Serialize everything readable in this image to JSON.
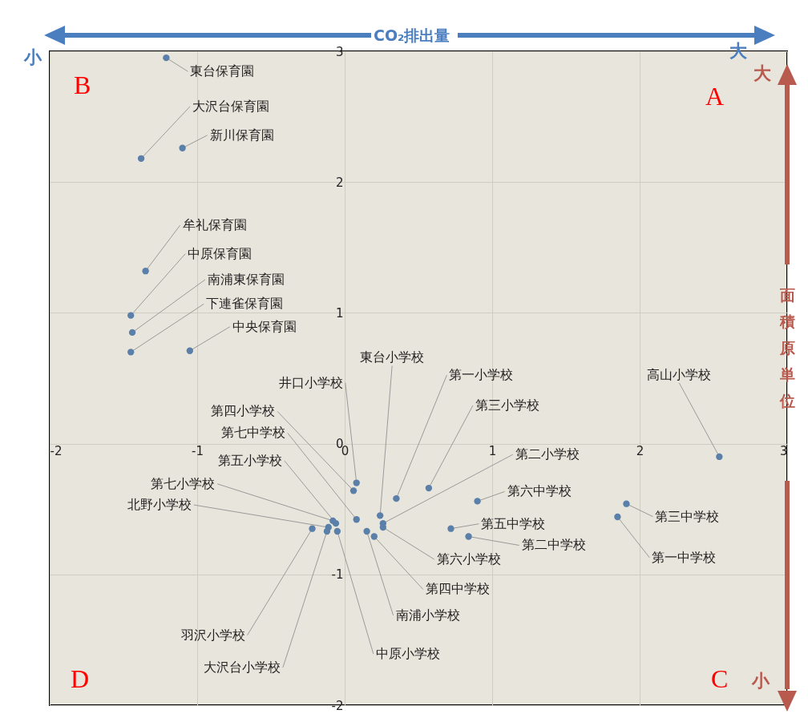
{
  "chart_data": {
    "type": "scatter",
    "xlabel": "CO₂排出量",
    "ylabel": "面積原単位",
    "xlim": [
      -2,
      3
    ],
    "ylim": [
      -2,
      3
    ],
    "xticks": [
      -2,
      -1,
      0,
      1,
      2,
      3
    ],
    "yticks": [
      -2,
      -1,
      0,
      1,
      2,
      3
    ],
    "grid": true,
    "marker": "circle",
    "series": [
      {
        "color": "#5a7fa9",
        "x": [
          -1.21,
          -1.38,
          -1.1,
          -1.35,
          -1.45,
          -1.44,
          -1.45,
          -1.05,
          2.54,
          0.08,
          0.06,
          0.08,
          -0.06,
          -0.08,
          -0.11,
          -0.22,
          -0.12,
          -0.05,
          0.24,
          0.35,
          0.57,
          0.26,
          0.9,
          0.72,
          0.84,
          0.26,
          0.2,
          0.15,
          1.91,
          1.85
        ],
        "values": [
          2.95,
          2.18,
          2.26,
          1.32,
          0.98,
          0.85,
          0.7,
          0.71,
          -0.1,
          -0.3,
          -0.36,
          -0.58,
          -0.61,
          -0.59,
          -0.64,
          -0.65,
          -0.67,
          -0.67,
          -0.55,
          -0.42,
          -0.34,
          -0.61,
          -0.44,
          -0.65,
          -0.71,
          -0.64,
          -0.71,
          -0.67,
          -0.46,
          -0.56
        ]
      }
    ],
    "annotations": [
      "A",
      "B",
      "C",
      "D",
      "小",
      "大",
      "大",
      "小",
      {
        "text": "東台保育園",
        "x": -1.21,
        "y": 2.95
      },
      {
        "text": "大沢台保育園",
        "x": -1.38,
        "y": 2.18
      },
      {
        "text": "新川保育園",
        "x": -1.1,
        "y": 2.26
      },
      {
        "text": "牟礼保育園",
        "x": -1.35,
        "y": 1.32
      },
      {
        "text": "中原保育園",
        "x": -1.45,
        "y": 0.98
      },
      {
        "text": "南浦東保育園",
        "x": -1.44,
        "y": 0.85
      },
      {
        "text": "下連雀保育園",
        "x": -1.45,
        "y": 0.7
      },
      {
        "text": "中央保育園",
        "x": -1.05,
        "y": 0.71
      },
      {
        "text": "高山小学校",
        "x": 2.54,
        "y": -0.1
      },
      {
        "text": "井口小学校",
        "x": 0.08,
        "y": -0.3
      },
      {
        "text": "第四小学校",
        "x": 0.06,
        "y": -0.36
      },
      {
        "text": "第七中学校",
        "x": 0.08,
        "y": -0.58
      },
      {
        "text": "第五小学校",
        "x": -0.06,
        "y": -0.61
      },
      {
        "text": "第七小学校",
        "x": -0.08,
        "y": -0.59
      },
      {
        "text": "北野小学校",
        "x": -0.11,
        "y": -0.64
      },
      {
        "text": "羽沢小学校",
        "x": -0.22,
        "y": -0.65
      },
      {
        "text": "大沢台小学校",
        "x": -0.12,
        "y": -0.67
      },
      {
        "text": "中原小学校",
        "x": -0.05,
        "y": -0.67
      },
      {
        "text": "東台小学校",
        "x": 0.24,
        "y": -0.55
      },
      {
        "text": "第一小学校",
        "x": 0.35,
        "y": -0.42
      },
      {
        "text": "第三小学校",
        "x": 0.57,
        "y": -0.34
      },
      {
        "text": "第二小学校",
        "x": 0.26,
        "y": -0.61
      },
      {
        "text": "第六中学校",
        "x": 0.9,
        "y": -0.44
      },
      {
        "text": "第五中学校",
        "x": 0.72,
        "y": -0.65
      },
      {
        "text": "第二中学校",
        "x": 0.84,
        "y": -0.71
      },
      {
        "text": "第六小学校",
        "x": 0.26,
        "y": -0.64
      },
      {
        "text": "第四中学校",
        "x": 0.2,
        "y": -0.71
      },
      {
        "text": "南浦小学校",
        "x": 0.15,
        "y": -0.67
      },
      {
        "text": "第三中学校",
        "x": 1.91,
        "y": -0.46
      },
      {
        "text": "第一中学校",
        "x": 1.85,
        "y": -0.56
      }
    ]
  }
}
